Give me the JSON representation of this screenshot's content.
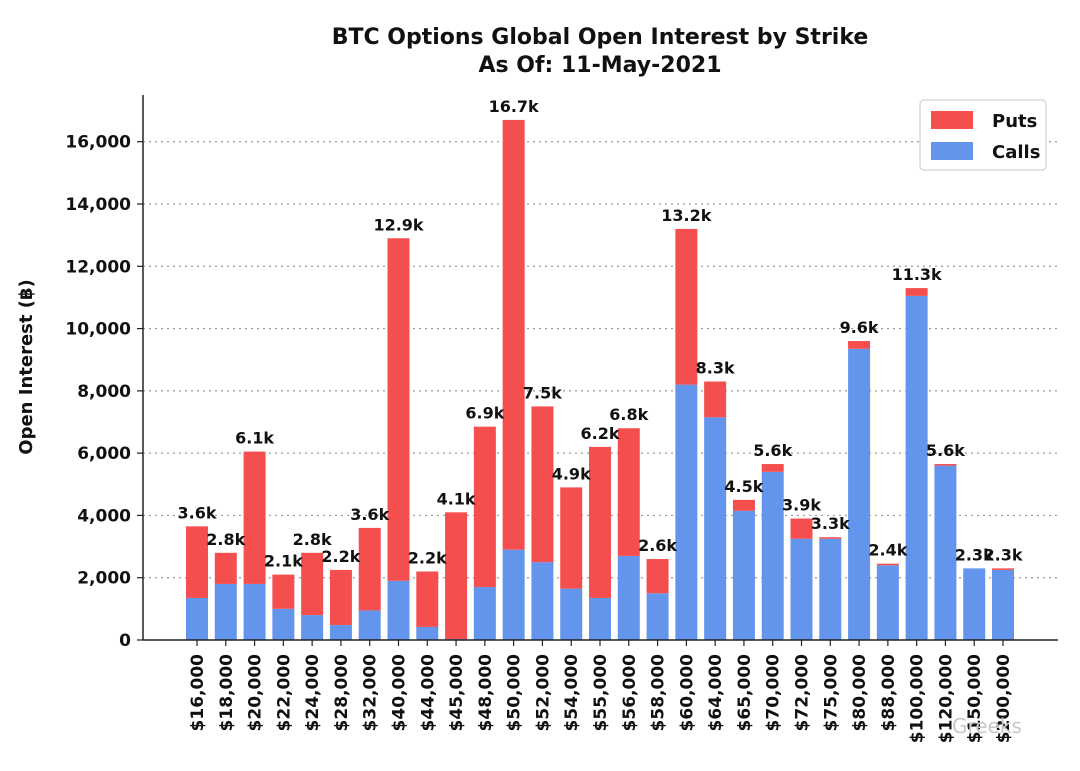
{
  "chart_data": {
    "type": "bar",
    "stacked": true,
    "title": "BTC Options Global Open Interest by Strike",
    "subtitle": "As Of: 11-May-2021",
    "xlabel": "",
    "ylabel": "Open Interest (฿)",
    "ylim": [
      0,
      17500
    ],
    "yticks": [
      0,
      2000,
      4000,
      6000,
      8000,
      10000,
      12000,
      14000,
      16000
    ],
    "ytick_labels": [
      "0",
      "2,000",
      "4,000",
      "6,000",
      "8,000",
      "10,000",
      "12,000",
      "14,000",
      "16,000"
    ],
    "grid": "horizontal dotted",
    "legend_position": "top-right",
    "categories": [
      "$16,000",
      "$18,000",
      "$20,000",
      "$22,000",
      "$24,000",
      "$28,000",
      "$32,000",
      "$40,000",
      "$44,000",
      "$45,000",
      "$48,000",
      "$50,000",
      "$52,000",
      "$54,000",
      "$55,000",
      "$56,000",
      "$58,000",
      "$60,000",
      "$64,000",
      "$65,000",
      "$70,000",
      "$72,000",
      "$75,000",
      "$80,000",
      "$88,000",
      "$100,000",
      "$120,000",
      "$150,000",
      "$200,000"
    ],
    "series": [
      {
        "name": "Calls",
        "color": "#6495ED",
        "values": [
          1350,
          1800,
          1800,
          1000,
          800,
          480,
          950,
          1900,
          420,
          30,
          1700,
          2900,
          2500,
          1650,
          1350,
          2700,
          1500,
          8200,
          7150,
          4150,
          5400,
          3250,
          3250,
          9350,
          2400,
          11050,
          5600,
          2300,
          2250
        ]
      },
      {
        "name": "Puts",
        "color": "#F54E4E",
        "values": [
          2300,
          1000,
          4250,
          1100,
          2000,
          1770,
          2650,
          11000,
          1780,
          4070,
          5150,
          13800,
          5000,
          3250,
          4850,
          4100,
          1100,
          5000,
          1150,
          350,
          250,
          650,
          50,
          250,
          50,
          250,
          50,
          0,
          50
        ]
      }
    ],
    "totals": [
      3650,
      2800,
      6050,
      2100,
      2800,
      2250,
      3600,
      12900,
      2200,
      4100,
      6850,
      16700,
      7500,
      4900,
      6200,
      6800,
      2600,
      13200,
      8300,
      4500,
      5650,
      3900,
      3300,
      9600,
      2450,
      11300,
      5650,
      2300,
      2300
    ],
    "total_labels": [
      "3.6k",
      "2.8k",
      "6.1k",
      "2.1k",
      "2.8k",
      "2.2k",
      "3.6k",
      "12.9k",
      "2.2k",
      "4.1k",
      "6.9k",
      "16.7k",
      "7.5k",
      "4.9k",
      "6.2k",
      "6.8k",
      "2.6k",
      "13.2k",
      "8.3k",
      "4.5k",
      "5.6k",
      "3.9k",
      "3.3k",
      "9.6k",
      "2.4k",
      "11.3k",
      "5.6k",
      "2.3k",
      "2.3k"
    ]
  },
  "watermark": "Greeks"
}
